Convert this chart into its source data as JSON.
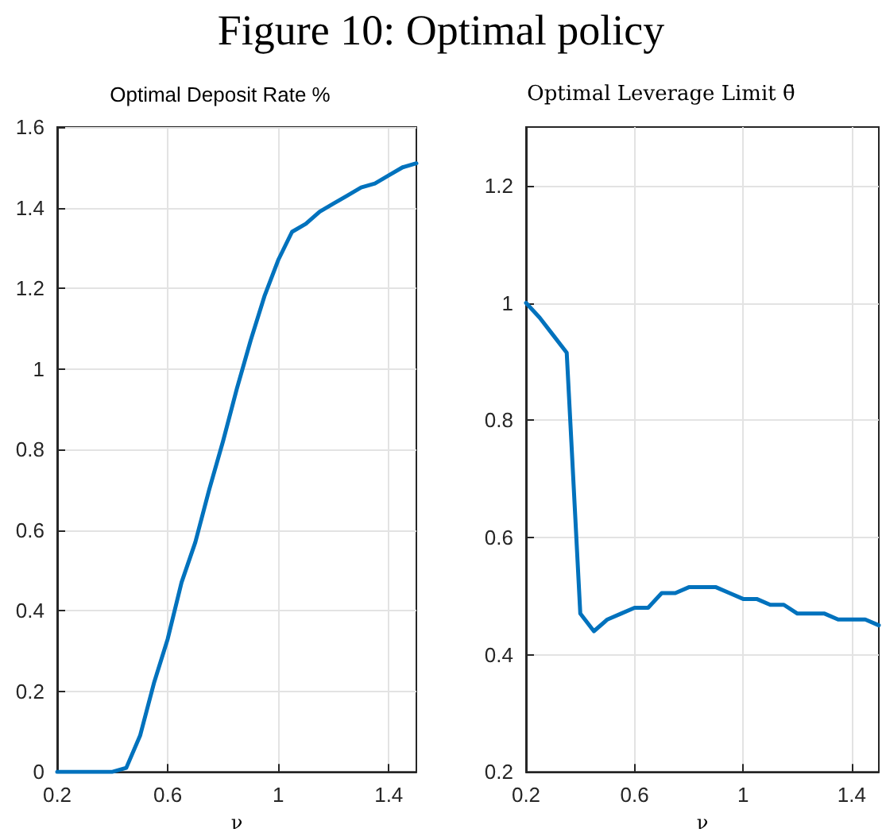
{
  "chart_data": [
    {
      "type": "line",
      "title": "Optimal Deposit Rate %",
      "xlabel": "ν",
      "annotations": [
        "Figure 10: Optimal policy"
      ],
      "x": [
        0.2,
        0.25,
        0.3,
        0.35,
        0.4,
        0.45,
        0.5,
        0.55,
        0.6,
        0.65,
        0.7,
        0.75,
        0.8,
        0.85,
        0.9,
        0.95,
        1.0,
        1.05,
        1.1,
        1.15,
        1.2,
        1.25,
        1.3,
        1.35,
        1.4,
        1.45,
        1.5
      ],
      "series": [
        {
          "color": "#0072bd",
          "values": [
            0,
            0,
            0,
            0,
            0,
            0.01,
            0.09,
            0.22,
            0.33,
            0.47,
            0.57,
            0.7,
            0.82,
            0.95,
            1.07,
            1.18,
            1.27,
            1.34,
            1.36,
            1.39,
            1.41,
            1.43,
            1.45,
            1.46,
            1.48,
            1.5,
            1.51
          ]
        }
      ],
      "xlim": [
        0.2,
        1.5
      ],
      "xticks": [
        0.2,
        0.6,
        1,
        1.4
      ],
      "ylim": [
        0,
        1.6
      ],
      "yticks": [
        0,
        0.2,
        0.4,
        0.6,
        0.8,
        1,
        1.2,
        1.4,
        1.6
      ],
      "grid": true,
      "marker": "none",
      "line_style": "solid"
    },
    {
      "type": "line",
      "title": "Optimal Leverage Limit θ̄",
      "xlabel": "ν",
      "x": [
        0.2,
        0.25,
        0.3,
        0.35,
        0.4,
        0.45,
        0.5,
        0.55,
        0.6,
        0.65,
        0.7,
        0.75,
        0.8,
        0.85,
        0.9,
        0.95,
        1.0,
        1.05,
        1.1,
        1.15,
        1.2,
        1.25,
        1.3,
        1.35,
        1.4,
        1.45,
        1.5
      ],
      "series": [
        {
          "color": "#0072bd",
          "values": [
            1.0,
            0.975,
            0.945,
            0.915,
            0.47,
            0.44,
            0.46,
            0.47,
            0.48,
            0.48,
            0.505,
            0.505,
            0.515,
            0.515,
            0.515,
            0.505,
            0.495,
            0.495,
            0.485,
            0.485,
            0.47,
            0.47,
            0.47,
            0.46,
            0.46,
            0.46,
            0.45
          ]
        }
      ],
      "xlim": [
        0.2,
        1.5
      ],
      "xticks": [
        0.2,
        0.6,
        1,
        1.4
      ],
      "ylim": [
        0.2,
        1.3
      ],
      "yticks": [
        0.2,
        0.4,
        0.6,
        0.8,
        1,
        1.2
      ],
      "grid": true,
      "marker": "none",
      "line_style": "solid"
    }
  ]
}
